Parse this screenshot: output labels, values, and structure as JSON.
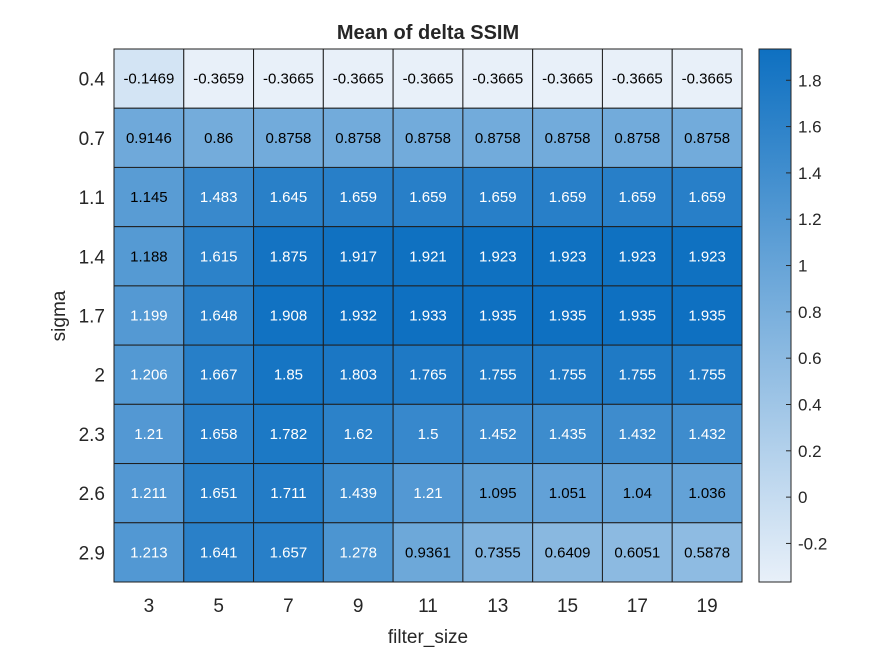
{
  "chart_data": {
    "type": "heatmap",
    "title": "Mean of delta SSIM",
    "xlabel": "filter_size",
    "ylabel": "sigma",
    "x_categories": [
      "3",
      "5",
      "7",
      "9",
      "11",
      "13",
      "15",
      "17",
      "19"
    ],
    "y_categories": [
      "0.4",
      "0.7",
      "1.1",
      "1.4",
      "1.7",
      "2",
      "2.3",
      "2.6",
      "2.9"
    ],
    "values": [
      [
        -0.1469,
        -0.3659,
        -0.3665,
        -0.3665,
        -0.3665,
        -0.3665,
        -0.3665,
        -0.3665,
        -0.3665
      ],
      [
        0.9146,
        0.86,
        0.8758,
        0.8758,
        0.8758,
        0.8758,
        0.8758,
        0.8758,
        0.8758
      ],
      [
        1.145,
        1.483,
        1.645,
        1.659,
        1.659,
        1.659,
        1.659,
        1.659,
        1.659
      ],
      [
        1.188,
        1.615,
        1.875,
        1.917,
        1.921,
        1.923,
        1.923,
        1.923,
        1.923
      ],
      [
        1.199,
        1.648,
        1.908,
        1.932,
        1.933,
        1.935,
        1.935,
        1.935,
        1.935
      ],
      [
        1.206,
        1.667,
        1.85,
        1.803,
        1.765,
        1.755,
        1.755,
        1.755,
        1.755
      ],
      [
        1.21,
        1.658,
        1.782,
        1.62,
        1.5,
        1.452,
        1.435,
        1.432,
        1.432
      ],
      [
        1.211,
        1.651,
        1.711,
        1.439,
        1.21,
        1.095,
        1.051,
        1.04,
        1.036
      ],
      [
        1.213,
        1.641,
        1.657,
        1.278,
        0.9361,
        0.7355,
        0.6409,
        0.6051,
        0.5878
      ]
    ],
    "value_labels": [
      [
        "-0.1469",
        "-0.3659",
        "-0.3665",
        "-0.3665",
        "-0.3665",
        "-0.3665",
        "-0.3665",
        "-0.3665",
        "-0.3665"
      ],
      [
        "0.9146",
        "0.86",
        "0.8758",
        "0.8758",
        "0.8758",
        "0.8758",
        "0.8758",
        "0.8758",
        "0.8758"
      ],
      [
        "1.145",
        "1.483",
        "1.645",
        "1.659",
        "1.659",
        "1.659",
        "1.659",
        "1.659",
        "1.659"
      ],
      [
        "1.188",
        "1.615",
        "1.875",
        "1.917",
        "1.921",
        "1.923",
        "1.923",
        "1.923",
        "1.923"
      ],
      [
        "1.199",
        "1.648",
        "1.908",
        "1.932",
        "1.933",
        "1.935",
        "1.935",
        "1.935",
        "1.935"
      ],
      [
        "1.206",
        "1.667",
        "1.85",
        "1.803",
        "1.765",
        "1.755",
        "1.755",
        "1.755",
        "1.755"
      ],
      [
        "1.21",
        "1.658",
        "1.782",
        "1.62",
        "1.5",
        "1.452",
        "1.435",
        "1.432",
        "1.432"
      ],
      [
        "1.211",
        "1.651",
        "1.711",
        "1.439",
        "1.21",
        "1.095",
        "1.051",
        "1.04",
        "1.036"
      ],
      [
        "1.213",
        "1.641",
        "1.657",
        "1.278",
        "0.9361",
        "0.7355",
        "0.6409",
        "0.6051",
        "0.5878"
      ]
    ],
    "colorbar": {
      "ticks": [
        "-0.2",
        "0",
        "0.2",
        "0.4",
        "0.6",
        "0.8",
        "1",
        "1.2",
        "1.4",
        "1.6",
        "1.8"
      ],
      "range": [
        -0.3665,
        1.935
      ],
      "color_low": "#e8f0f9",
      "color_high": "#0e70c1"
    },
    "text_color_dark": "#000000",
    "text_color_light": "#ffffff",
    "grid_line_color": "#1f1f1f"
  }
}
